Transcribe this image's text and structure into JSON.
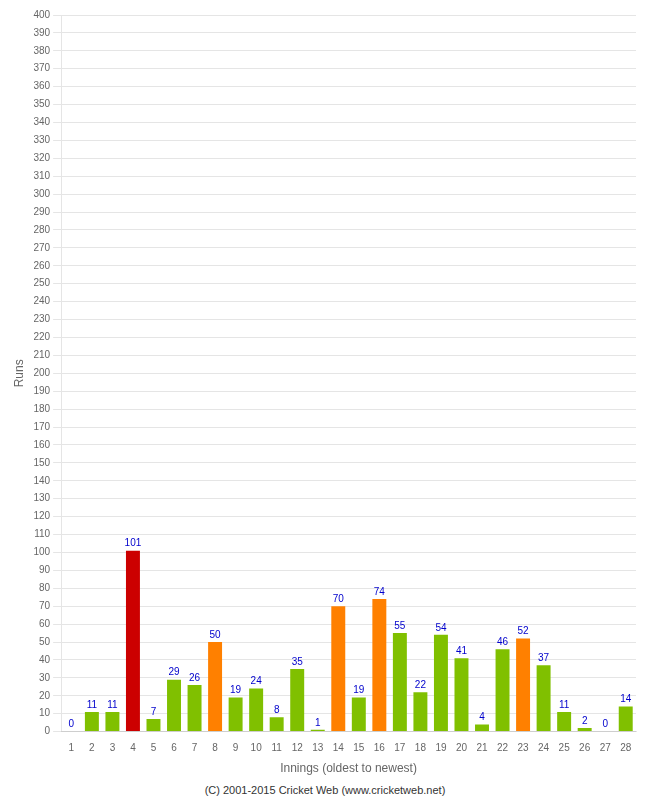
{
  "chart_data": {
    "type": "bar",
    "xlabel": "Innings (oldest to newest)",
    "ylabel": "Runs",
    "footer": "(C) 2001-2015 Cricket Web (www.cricketweb.net)",
    "categories": [
      "1",
      "2",
      "3",
      "4",
      "5",
      "6",
      "7",
      "8",
      "9",
      "10",
      "11",
      "12",
      "13",
      "14",
      "15",
      "16",
      "17",
      "18",
      "19",
      "20",
      "21",
      "22",
      "23",
      "24",
      "25",
      "26",
      "27",
      "28"
    ],
    "values": [
      0,
      11,
      11,
      101,
      7,
      29,
      26,
      50,
      19,
      24,
      8,
      35,
      1,
      70,
      19,
      74,
      55,
      22,
      54,
      41,
      4,
      46,
      52,
      37,
      11,
      2,
      0,
      14
    ],
    "colors": [
      "#80c000",
      "#80c000",
      "#80c000",
      "#cc0000",
      "#80c000",
      "#80c000",
      "#80c000",
      "#ff8000",
      "#80c000",
      "#80c000",
      "#80c000",
      "#80c000",
      "#80c000",
      "#ff8000",
      "#80c000",
      "#ff8000",
      "#80c000",
      "#80c000",
      "#80c000",
      "#80c000",
      "#80c000",
      "#80c000",
      "#ff8000",
      "#80c000",
      "#80c000",
      "#80c000",
      "#80c000",
      "#80c000"
    ],
    "ylim": [
      0,
      400
    ],
    "yticks": [
      0,
      10,
      20,
      30,
      40,
      50,
      60,
      70,
      80,
      90,
      100,
      110,
      120,
      130,
      140,
      150,
      160,
      170,
      180,
      190,
      200,
      210,
      220,
      230,
      240,
      250,
      260,
      270,
      280,
      290,
      300,
      310,
      320,
      330,
      340,
      350,
      360,
      370,
      380,
      390,
      400
    ],
    "grid": true,
    "data_labels": true
  }
}
